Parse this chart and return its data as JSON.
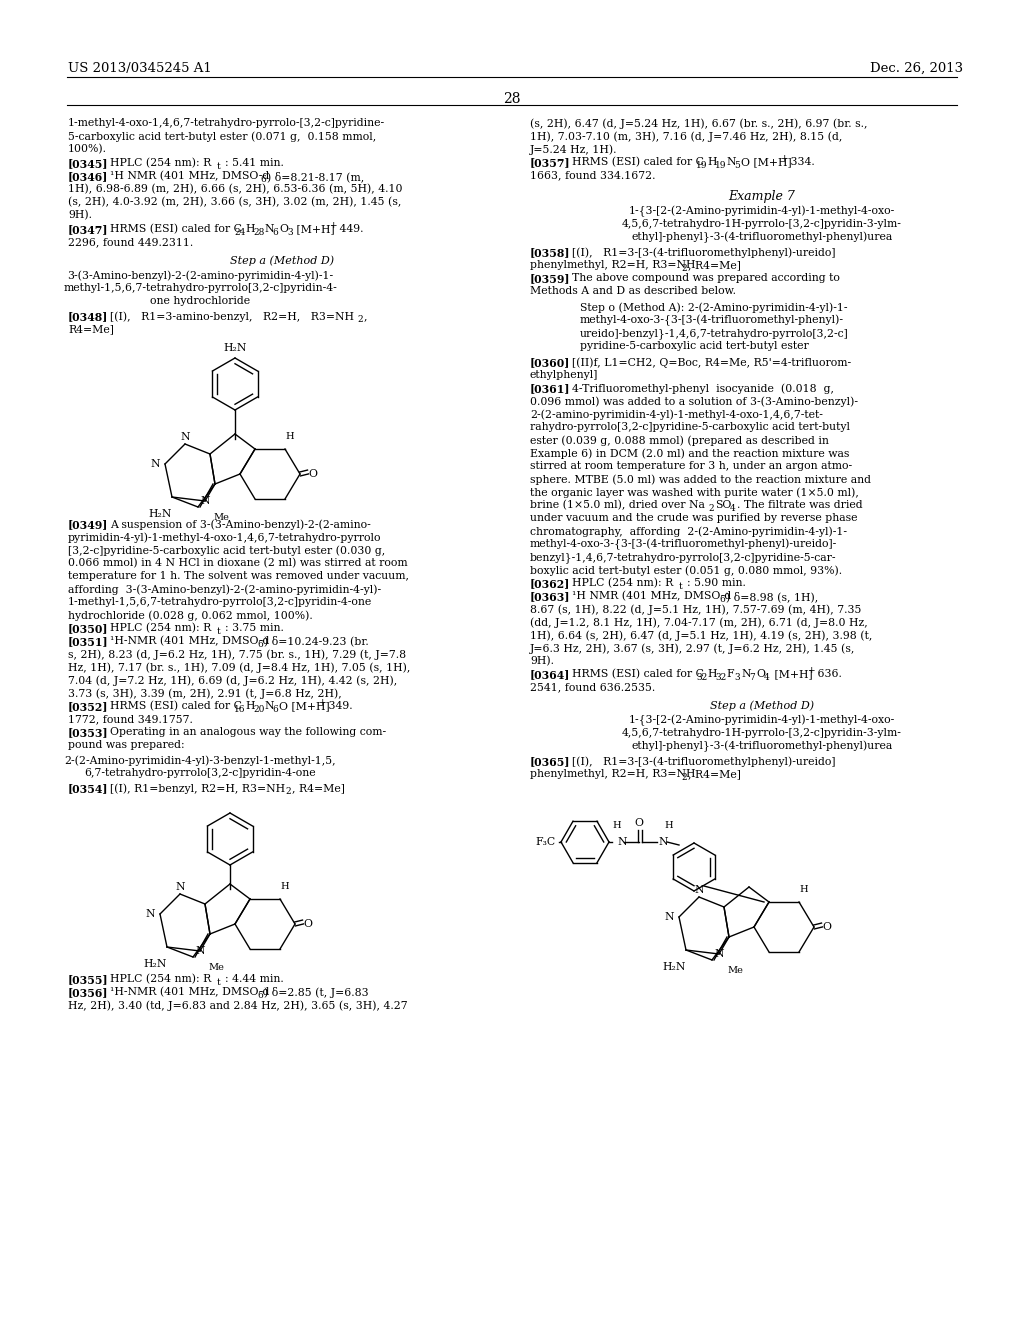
{
  "page_number": "28",
  "patent_number": "US 2013/0345245 A1",
  "patent_date": "Dec. 26, 2013",
  "background_color": "#ffffff",
  "figsize": [
    10.24,
    13.2
  ],
  "dpi": 100
}
